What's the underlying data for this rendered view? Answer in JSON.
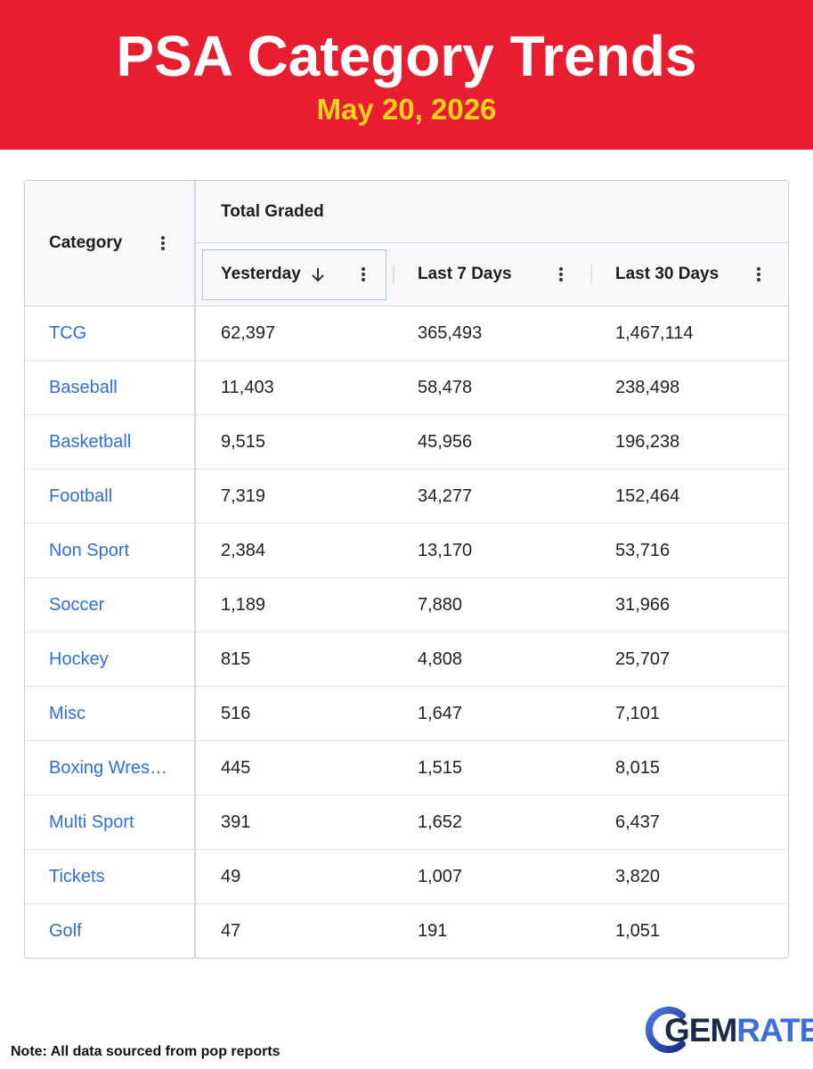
{
  "header": {
    "title": "PSA Category Trends",
    "date": "May 20, 2026"
  },
  "table": {
    "category_header": "Category",
    "group_header": "Total Graded",
    "columns": [
      "Yesterday",
      "Last 7 Days",
      "Last 30 Days"
    ],
    "rows": [
      [
        "TCG",
        "62,397",
        "365,493",
        "1,467,114"
      ],
      [
        "Baseball",
        "11,403",
        "58,478",
        "238,498"
      ],
      [
        "Basketball",
        "9,515",
        "45,956",
        "196,238"
      ],
      [
        "Football",
        "7,319",
        "34,277",
        "152,464"
      ],
      [
        "Non Sport",
        "2,384",
        "13,170",
        "53,716"
      ],
      [
        "Soccer",
        "1,189",
        "7,880",
        "31,966"
      ],
      [
        "Hockey",
        "815",
        "4,808",
        "25,707"
      ],
      [
        "Misc",
        "516",
        "1,647",
        "7,101"
      ],
      [
        "Boxing Wres…",
        "445",
        "1,515",
        "8,015"
      ],
      [
        "Multi Sport",
        "391",
        "1,652",
        "6,437"
      ],
      [
        "Tickets",
        "49",
        "1,007",
        "3,820"
      ],
      [
        "Golf",
        "47",
        "191",
        "1,051"
      ]
    ]
  },
  "footer": {
    "note": "Note: All data sourced from pop reports",
    "logo": [
      "GEM",
      "RATE"
    ]
  }
}
